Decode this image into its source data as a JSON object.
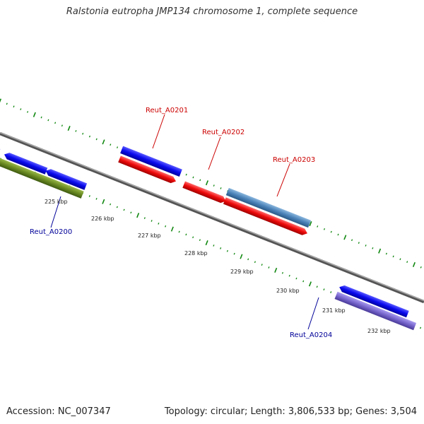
{
  "title": "Ralstonia eutropha JMP134 chromosome 1, complete sequence",
  "accession": "Accession: NC_007347",
  "stats": "Topology: circular; Length: 3,806,533 bp; Genes: 3,504",
  "scale_labels": [
    "225 kbp",
    "226 kbp",
    "227 kbp",
    "228 kbp",
    "229 kbp",
    "230 kbp",
    "231 kbp",
    "232 kbp"
  ],
  "gene_labels": [
    {
      "name": "Reut_A0201",
      "color": "#cc0000"
    },
    {
      "name": "Reut_A0202",
      "color": "#cc0000"
    },
    {
      "name": "Reut_A0203",
      "color": "#cc0000"
    },
    {
      "name": "Reut_A0200",
      "color": "#000099"
    },
    {
      "name": "Reut_A0204",
      "color": "#000099"
    }
  ],
  "colors": {
    "blue": "#0a0aee",
    "red": "#ee0a0a",
    "olive": "#6a8a22",
    "steelblue": "#4a82b8",
    "lavender": "#7766cc",
    "backbone": "#888888",
    "dots": "#118811"
  }
}
